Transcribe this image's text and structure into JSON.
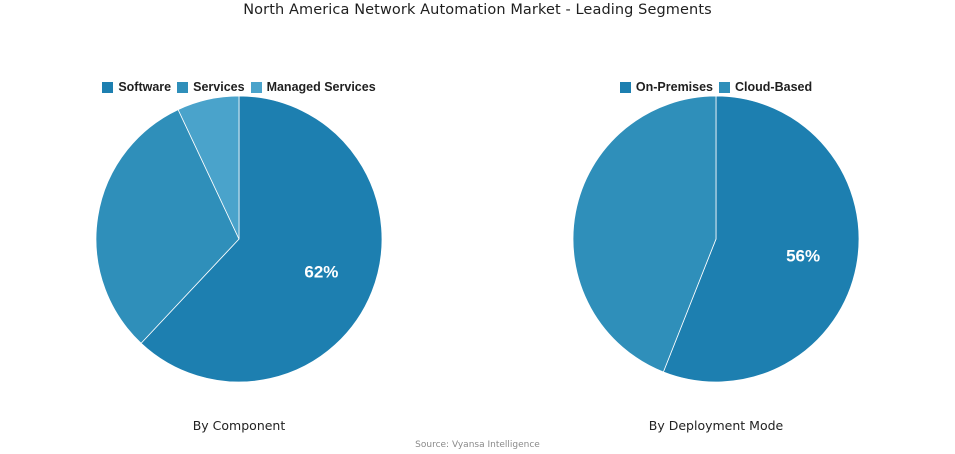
{
  "title": "North America Network Automation Market - Leading Segments",
  "source": "Source: Vyansa Intelligence",
  "chart_data": [
    {
      "type": "pie",
      "caption": "By Component",
      "categories": [
        "Software",
        "Services",
        "Managed Services"
      ],
      "values": [
        62,
        31,
        7
      ],
      "colors": [
        "#1d7fb0",
        "#2f8fba",
        "#4aa3cb"
      ],
      "data_labels": [
        "62%",
        "",
        ""
      ],
      "legend_position": "top",
      "start_angle_deg": 0,
      "direction": "clockwise"
    },
    {
      "type": "pie",
      "caption": "By Deployment Mode",
      "categories": [
        "On-Premises",
        "Cloud-Based"
      ],
      "values": [
        56,
        44
      ],
      "colors": [
        "#1d7fb0",
        "#2f8fba"
      ],
      "data_labels": [
        "56%",
        ""
      ],
      "legend_position": "top",
      "start_angle_deg": 0,
      "direction": "clockwise"
    }
  ]
}
